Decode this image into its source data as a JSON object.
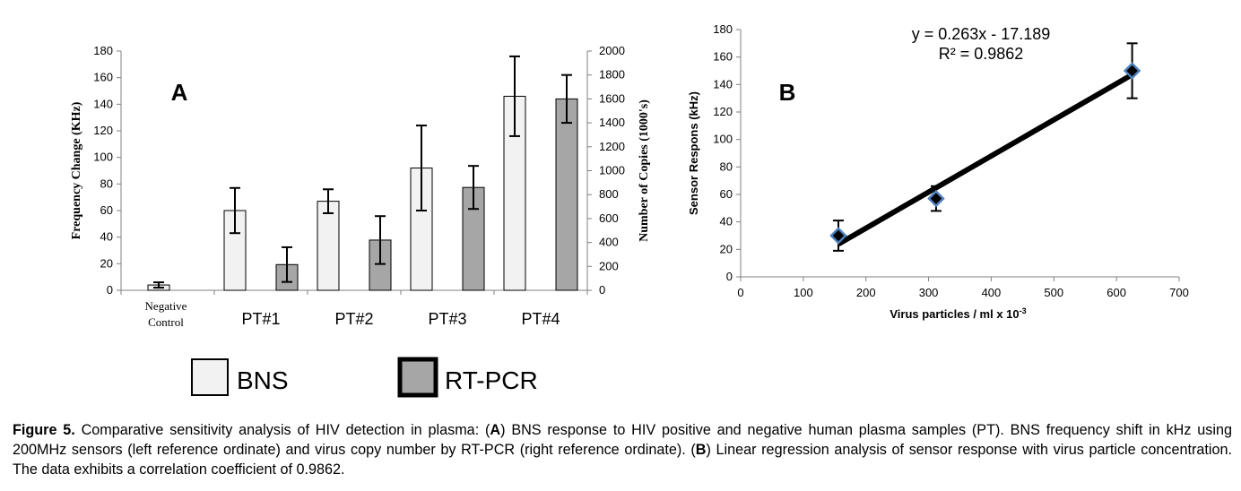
{
  "figure": {
    "caption": {
      "label": "Figure 5.",
      "p1": " Comparative sensitivity analysis of HIV detection in plasma: (",
      "a": "A",
      "p2": ") BNS response to HIV positive and negative human plasma samples (PT). BNS frequency shift in kHz using 200MHz sensors (left reference ordinate) and virus copy number by RT-PCR (right reference ordinate). (",
      "b": "B",
      "p3": ") Linear regression analysis of sensor response with virus particle concentration. The data exhibits a correlation coefficient of 0.9862."
    }
  },
  "chart_data": [
    {
      "panel_label": "A",
      "type": "bar",
      "categories": [
        "Negative Control",
        "PT#1",
        "PT#2",
        "PT#3",
        "PT#4"
      ],
      "ylabel": "Frequency Change (KHz)",
      "y2label": "Number of Copies (1000's)",
      "ylim": [
        0,
        180
      ],
      "yticks": [
        0,
        20,
        40,
        60,
        80,
        100,
        120,
        140,
        160,
        180
      ],
      "y2lim": [
        0,
        2000
      ],
      "y2ticks": [
        0,
        200,
        400,
        600,
        800,
        1000,
        1200,
        1400,
        1600,
        1800,
        2000
      ],
      "legend_position": "bottom",
      "series": [
        {
          "name": "BNS",
          "axis": "left",
          "color": "#f2f2f2",
          "values": [
            4,
            60,
            67,
            92,
            146
          ],
          "errors": [
            2,
            17,
            9,
            32,
            30
          ]
        },
        {
          "name": "RT-PCR",
          "axis": "right",
          "color": "#a6a6a6",
          "values": [
            null,
            215,
            420,
            860,
            1600
          ],
          "errors": [
            null,
            145,
            200,
            180,
            200
          ]
        }
      ]
    },
    {
      "panel_label": "B",
      "type": "scatter",
      "xlabel": "Virus particles / ml x 10",
      "xlabel_sup": "-3",
      "ylabel": "Sensor Respons (kHz)",
      "xlim": [
        0,
        700
      ],
      "xticks": [
        0,
        100,
        200,
        300,
        400,
        500,
        600,
        700
      ],
      "ylim": [
        0,
        180
      ],
      "yticks": [
        0,
        20,
        40,
        60,
        80,
        100,
        120,
        140,
        160,
        180
      ],
      "grid": false,
      "points": [
        {
          "x": 156,
          "y": 30,
          "error": 11
        },
        {
          "x": 312,
          "y": 57,
          "error": 9
        },
        {
          "x": 625,
          "y": 150,
          "error": 20
        }
      ],
      "trendline": {
        "slope": 0.263,
        "intercept": -17.189,
        "x_range": [
          156,
          625
        ]
      },
      "annotation": {
        "equation": "y = 0.263x - 17.189",
        "r2": "R² = 0.9862"
      },
      "marker_color": "#4f81bd"
    }
  ]
}
